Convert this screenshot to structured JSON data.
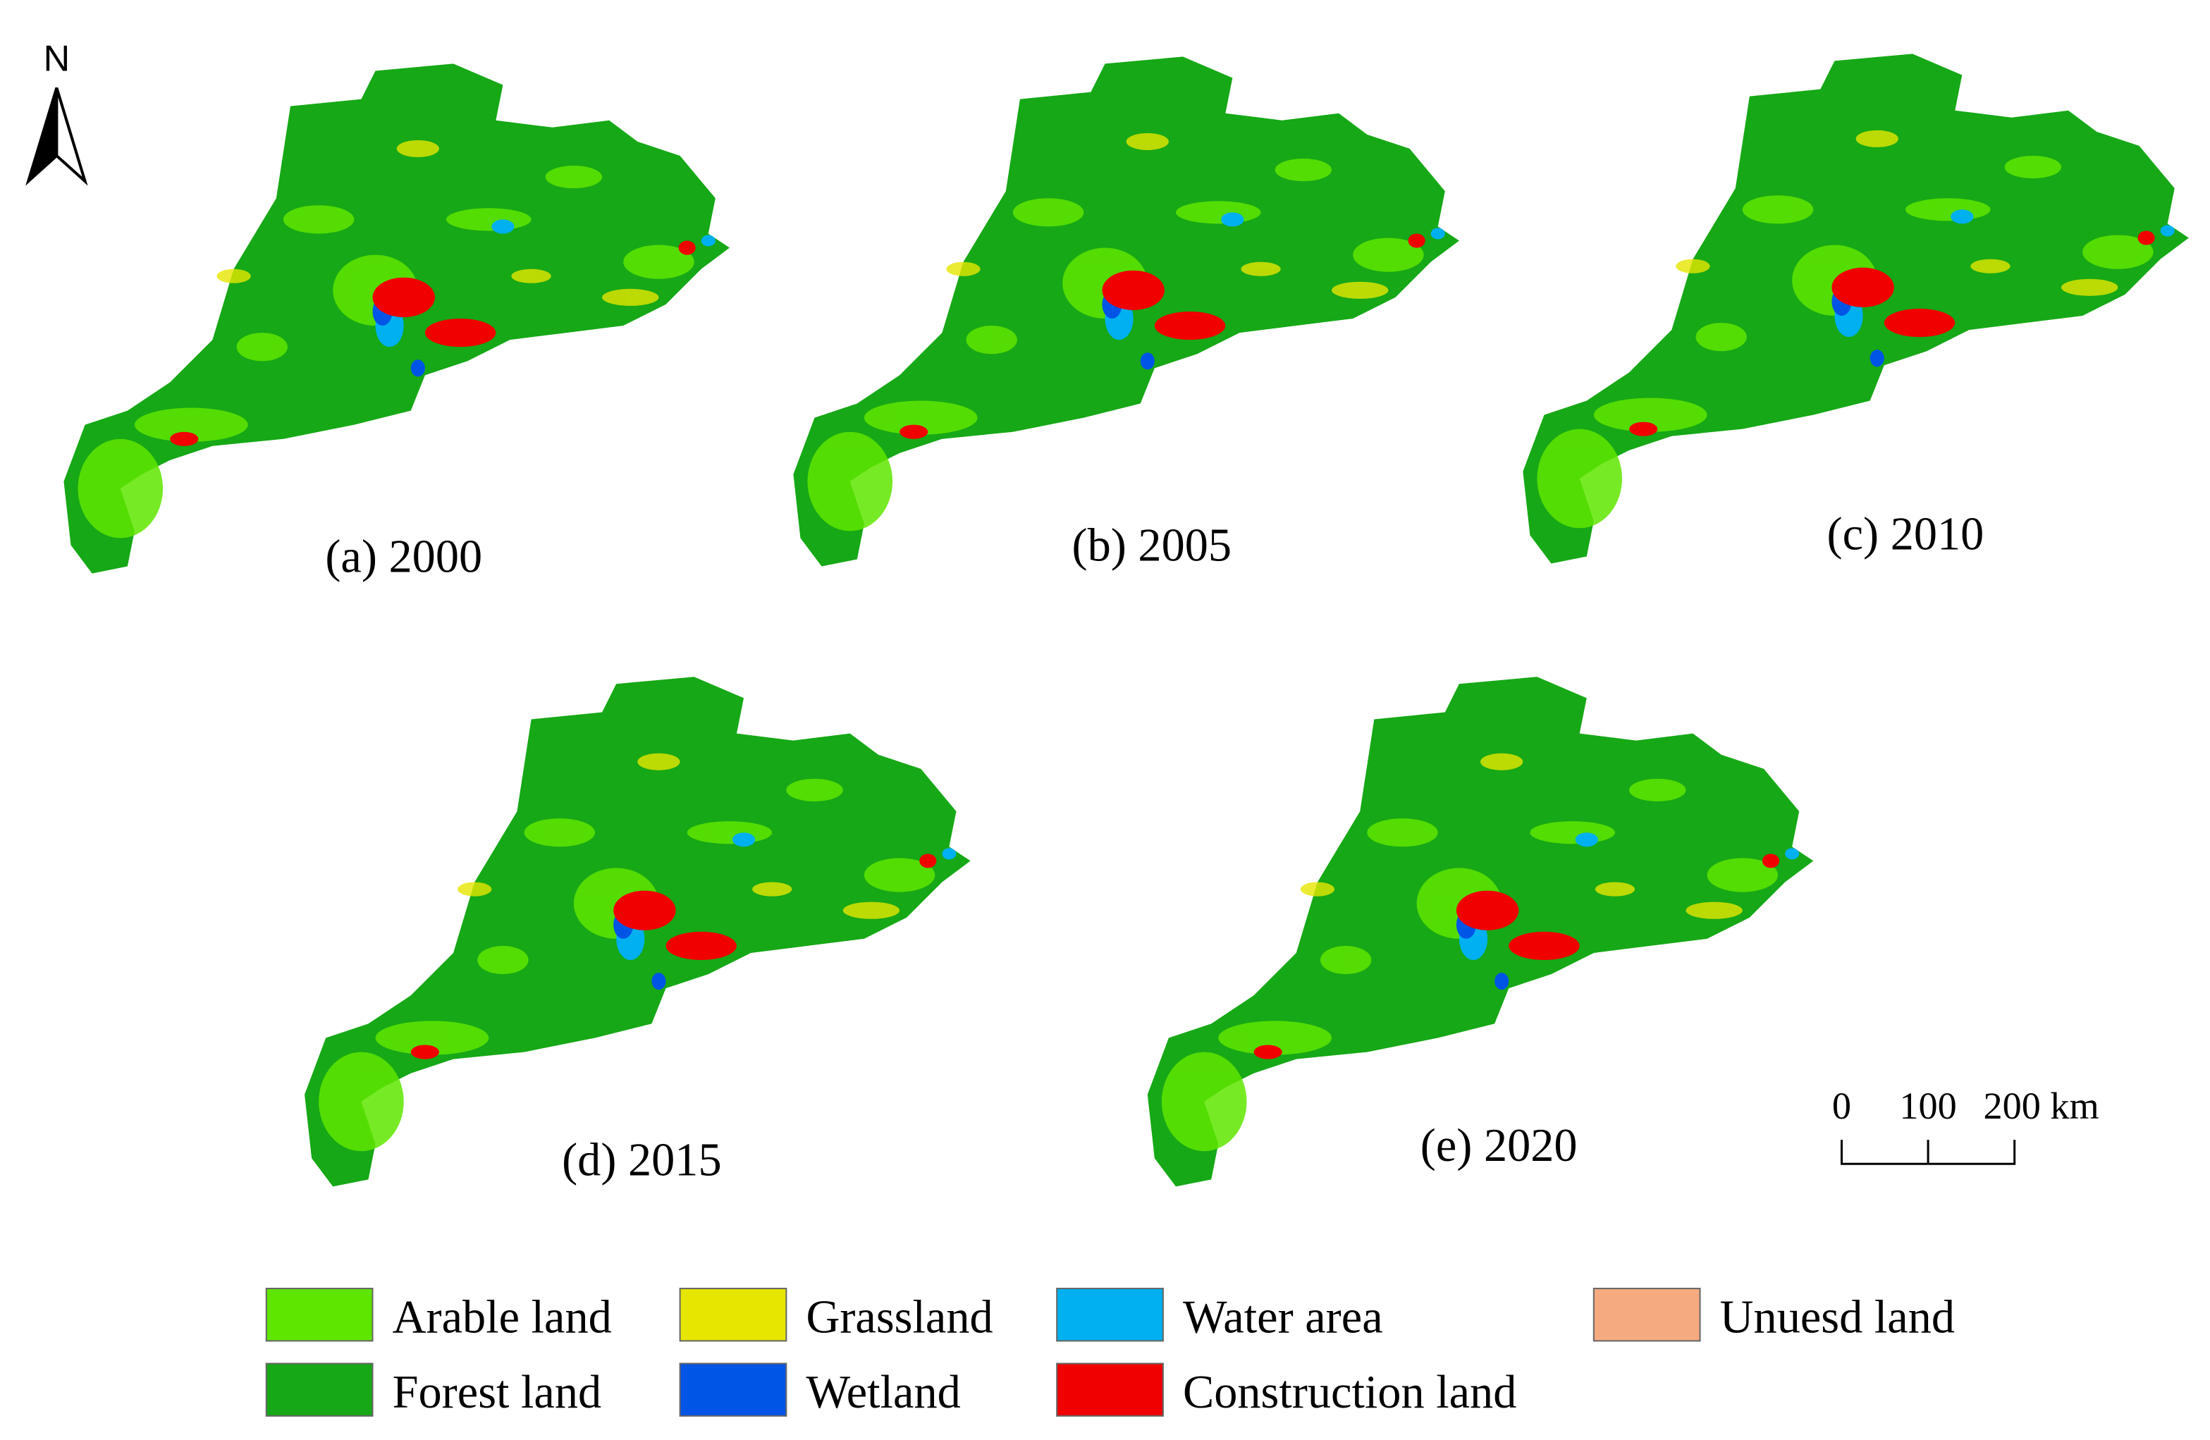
{
  "north_label": "N",
  "panels": [
    {
      "label": "(a) 2000"
    },
    {
      "label": "(b) 2005"
    },
    {
      "label": "(c) 2010"
    },
    {
      "label": "(d) 2015"
    },
    {
      "label": "(e) 2020"
    }
  ],
  "scale_bar": {
    "labels": [
      "0",
      "100",
      "200 km"
    ]
  },
  "legend": [
    {
      "label": "Arable land",
      "color": "#5fe600"
    },
    {
      "label": "Grassland",
      "color": "#e6e600"
    },
    {
      "label": "Water area",
      "color": "#00b0f0"
    },
    {
      "label": "Unuesd land",
      "color": "#f5aa80"
    },
    {
      "label": "Forest land",
      "color": "#16a816"
    },
    {
      "label": "Wetland",
      "color": "#0055e6"
    },
    {
      "label": "Construction land",
      "color": "#f00000"
    }
  ]
}
